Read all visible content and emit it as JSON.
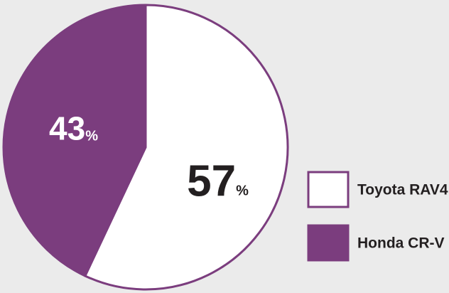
{
  "chart_data": {
    "type": "pie",
    "categories": [
      "Toyota RAV4",
      "Honda CR-V"
    ],
    "values": [
      57,
      43
    ],
    "value_labels": [
      "57%",
      "43%"
    ],
    "colors": [
      "#ffffff",
      "#7b3d7e"
    ],
    "edge_color": "#7b3d7e",
    "label_colors": [
      "#231f20",
      "#ffffff"
    ],
    "legend": "right"
  }
}
